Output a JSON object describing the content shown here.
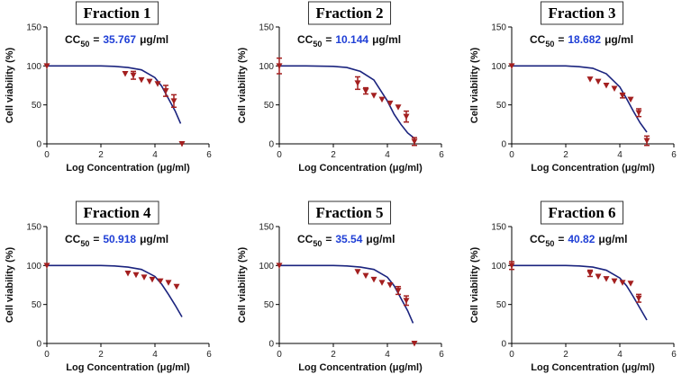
{
  "chart_data": [
    {
      "type": "scatter",
      "title": "Fraction 1",
      "ylabel": "Cell viability (%)",
      "xlabel": "Log Concentration (μg/ml)",
      "annotation": {
        "prefix": "CC",
        "subscript": "50",
        "equals": "=",
        "value": 35.767,
        "unit": "μg/ml",
        "value_color": "#1f3fd6"
      },
      "xlim": [
        0,
        6
      ],
      "ylim": [
        0,
        150
      ],
      "xticks": [
        0,
        2,
        4,
        6
      ],
      "yticks": [
        0,
        50,
        100,
        150
      ],
      "points": {
        "color": "#a31f1f",
        "x": [
          0,
          2.9,
          3.2,
          3.5,
          3.8,
          4.1,
          4.4,
          4.7,
          5
        ],
        "values": [
          100,
          90,
          88,
          82,
          80,
          77,
          68,
          55,
          0
        ],
        "errors": [
          null,
          null,
          5,
          null,
          null,
          null,
          7,
          8,
          null
        ]
      },
      "fit": {
        "color": "#1a237e",
        "x": [
          0,
          1,
          2,
          2.5,
          3,
          3.5,
          4,
          4.25,
          4.5,
          4.75,
          4.95
        ],
        "values": [
          100,
          100,
          100,
          99.5,
          98,
          95,
          85,
          74,
          58,
          42,
          26
        ]
      }
    },
    {
      "type": "scatter",
      "title": "Fraction 2",
      "ylabel": "Cell viability (%)",
      "xlabel": "Log Concentration (μg/ml)",
      "annotation": {
        "prefix": "CC",
        "subscript": "50",
        "equals": "=",
        "value": 10.144,
        "unit": "μg/ml",
        "value_color": "#1f3fd6"
      },
      "xlim": [
        0,
        6
      ],
      "ylim": [
        0,
        150
      ],
      "xticks": [
        0,
        2,
        4,
        6
      ],
      "yticks": [
        0,
        50,
        100,
        150
      ],
      "points": {
        "color": "#a31f1f",
        "x": [
          0,
          2.9,
          3.2,
          3.5,
          3.8,
          4.1,
          4.4,
          4.7,
          5
        ],
        "values": [
          100,
          78,
          68,
          62,
          57,
          52,
          47,
          35,
          3
        ],
        "errors": [
          10,
          8,
          4,
          null,
          null,
          null,
          null,
          7,
          5
        ]
      },
      "fit": {
        "color": "#1a237e",
        "x": [
          0,
          1,
          2,
          2.5,
          3,
          3.5,
          4,
          4.25,
          4.5,
          4.75,
          5
        ],
        "values": [
          100,
          100,
          99.5,
          98,
          93,
          82,
          55,
          38,
          25,
          14,
          7
        ]
      }
    },
    {
      "type": "scatter",
      "title": "Fraction 3",
      "ylabel": "Cell viability (%)",
      "xlabel": "Log Concentration (μg/ml)",
      "annotation": {
        "prefix": "CC",
        "subscript": "50",
        "equals": "=",
        "value": 18.682,
        "unit": "μg/ml",
        "value_color": "#1f3fd6"
      },
      "xlim": [
        0,
        6
      ],
      "ylim": [
        0,
        150
      ],
      "xticks": [
        0,
        2,
        4,
        6
      ],
      "yticks": [
        0,
        50,
        100,
        150
      ],
      "points": {
        "color": "#a31f1f",
        "x": [
          0,
          2.9,
          3.2,
          3.5,
          3.8,
          4.1,
          4.4,
          4.7,
          5
        ],
        "values": [
          100,
          83,
          80,
          75,
          71,
          62,
          57,
          40,
          4
        ],
        "errors": [
          null,
          null,
          null,
          null,
          null,
          3,
          null,
          5,
          6
        ]
      },
      "fit": {
        "color": "#1a237e",
        "x": [
          0,
          1,
          2,
          2.5,
          3,
          3.5,
          4,
          4.25,
          4.5,
          4.75,
          5
        ],
        "values": [
          100,
          100,
          100,
          99,
          97,
          90,
          73,
          58,
          42,
          27,
          15
        ]
      }
    },
    {
      "type": "scatter",
      "title": "Fraction 4",
      "ylabel": "Cell viability (%)",
      "xlabel": "Log Concentration (μg/ml)",
      "annotation": {
        "prefix": "CC",
        "subscript": "50",
        "equals": "=",
        "value": 50.918,
        "unit": "μg/ml",
        "value_color": "#1f3fd6"
      },
      "xlim": [
        0,
        6
      ],
      "ylim": [
        0,
        150
      ],
      "xticks": [
        0,
        2,
        4,
        6
      ],
      "yticks": [
        0,
        50,
        100,
        150
      ],
      "points": {
        "color": "#a31f1f",
        "x": [
          0,
          3,
          3.3,
          3.6,
          3.9,
          4.2,
          4.5,
          4.8
        ],
        "values": [
          100,
          90,
          88,
          85,
          82,
          80,
          78,
          73
        ],
        "errors": [
          null,
          null,
          null,
          null,
          null,
          null,
          null,
          null
        ]
      },
      "fit": {
        "color": "#1a237e",
        "x": [
          0,
          1,
          2,
          2.5,
          3,
          3.5,
          4,
          4.25,
          4.5,
          4.75,
          5
        ],
        "values": [
          100,
          100,
          100,
          99.5,
          98,
          95,
          86,
          76,
          63,
          49,
          34
        ]
      }
    },
    {
      "type": "scatter",
      "title": "Fraction 5",
      "ylabel": "Cell viability (%)",
      "xlabel": "Log Concentration (μg/ml)",
      "annotation": {
        "prefix": "CC",
        "subscript": "50",
        "equals": "=",
        "value": 35.54,
        "unit": "μg/ml",
        "value_color": "#1f3fd6"
      },
      "xlim": [
        0,
        6
      ],
      "ylim": [
        0,
        150
      ],
      "xticks": [
        0,
        2,
        4,
        6
      ],
      "yticks": [
        0,
        50,
        100,
        150
      ],
      "points": {
        "color": "#a31f1f",
        "x": [
          0,
          2.9,
          3.2,
          3.5,
          3.8,
          4.1,
          4.4,
          4.7,
          5
        ],
        "values": [
          100,
          92,
          87,
          82,
          78,
          75,
          68,
          55,
          0
        ],
        "errors": [
          null,
          null,
          null,
          null,
          null,
          null,
          5,
          6,
          null
        ]
      },
      "fit": {
        "color": "#1a237e",
        "x": [
          0,
          1,
          2,
          2.5,
          3,
          3.5,
          4,
          4.25,
          4.5,
          4.75,
          4.95
        ],
        "values": [
          100,
          100,
          100,
          99.5,
          98,
          95,
          85,
          74,
          58,
          42,
          26
        ]
      }
    },
    {
      "type": "scatter",
      "title": "Fraction 6",
      "ylabel": "Cell viability (%)",
      "xlabel": "Log Concentration (μg/ml)",
      "annotation": {
        "prefix": "CC",
        "subscript": "50",
        "equals": "=",
        "value": 40.82,
        "unit": "μg/ml",
        "value_color": "#1f3fd6"
      },
      "xlim": [
        0,
        6
      ],
      "ylim": [
        0,
        150
      ],
      "xticks": [
        0,
        2,
        4,
        6
      ],
      "yticks": [
        0,
        50,
        100,
        150
      ],
      "points": {
        "color": "#a31f1f",
        "x": [
          0,
          2.9,
          3.2,
          3.5,
          3.8,
          4.1,
          4.4,
          4.7
        ],
        "values": [
          100,
          90,
          86,
          83,
          80,
          78,
          77,
          58
        ],
        "errors": [
          5,
          4,
          null,
          null,
          null,
          null,
          null,
          5
        ]
      },
      "fit": {
        "color": "#1a237e",
        "x": [
          0,
          1,
          2,
          2.5,
          3,
          3.5,
          4,
          4.25,
          4.5,
          4.75,
          5
        ],
        "values": [
          100,
          100,
          100,
          99.5,
          98,
          94,
          84,
          74,
          60,
          45,
          30
        ]
      }
    }
  ]
}
